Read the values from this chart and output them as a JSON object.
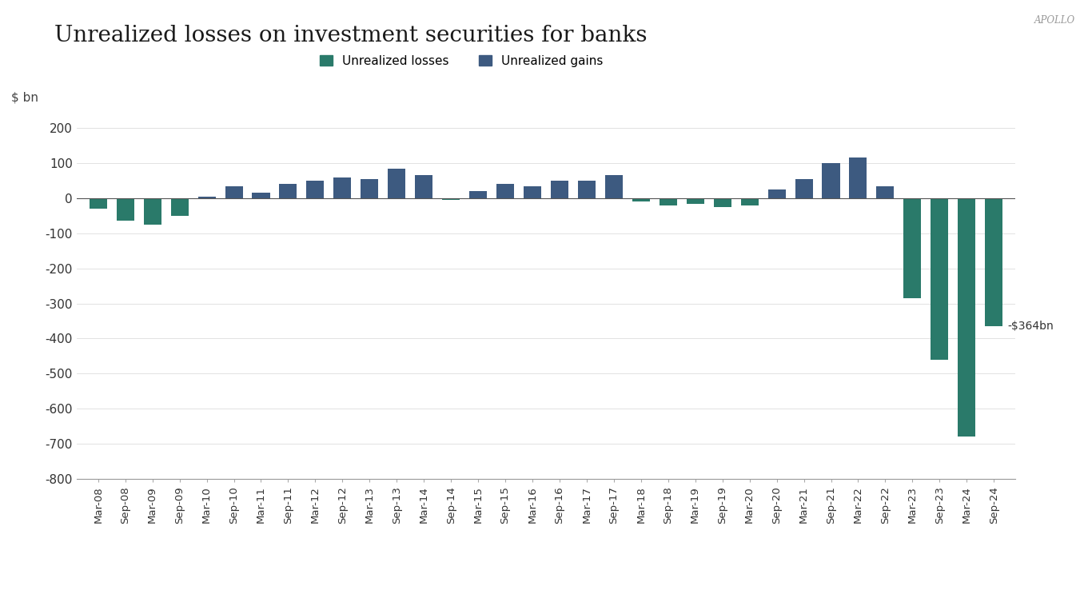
{
  "title": "Unrealized losses on investment securities for banks",
  "watermark": "APOLLO",
  "ylabel": "$ bn",
  "ylim": [
    -800,
    250
  ],
  "yticks": [
    -800,
    -700,
    -600,
    -500,
    -400,
    -300,
    -200,
    -100,
    0,
    100,
    200
  ],
  "annotation": "-$364bn",
  "loss_color": "#2a7a6a",
  "gain_color": "#3d5a80",
  "background_color": "#ffffff",
  "legend_loss": "Unrealized losses",
  "legend_gain": "Unrealized gains",
  "categories": [
    "Mar-08",
    "Sep-08",
    "Mar-09",
    "Sep-09",
    "Mar-10",
    "Sep-10",
    "Mar-11",
    "Sep-11",
    "Mar-12",
    "Sep-12",
    "Mar-13",
    "Sep-13",
    "Mar-14",
    "Sep-14",
    "Mar-15",
    "Sep-15",
    "Mar-16",
    "Sep-16",
    "Mar-17",
    "Sep-17",
    "Mar-18",
    "Sep-18",
    "Mar-19",
    "Sep-19",
    "Mar-20",
    "Sep-20",
    "Mar-21",
    "Sep-21",
    "Mar-22",
    "Sep-22",
    "Mar-23",
    "Sep-23",
    "Mar-24",
    "Sep-24"
  ],
  "values": [
    -30,
    -65,
    -75,
    -50,
    5,
    35,
    15,
    40,
    50,
    60,
    55,
    85,
    65,
    -5,
    20,
    40,
    35,
    50,
    50,
    65,
    -10,
    -20,
    -15,
    -25,
    -20,
    25,
    55,
    100,
    115,
    35,
    -285,
    -460,
    -680,
    -364
  ],
  "bar_types": [
    "loss",
    "loss",
    "loss",
    "loss",
    "gain",
    "gain",
    "gain",
    "gain",
    "gain",
    "gain",
    "gain",
    "gain",
    "gain",
    "loss",
    "gain",
    "gain",
    "gain",
    "gain",
    "gain",
    "gain",
    "loss",
    "loss",
    "loss",
    "loss",
    "loss",
    "gain",
    "gain",
    "gain",
    "gain",
    "gain",
    "loss",
    "loss",
    "loss",
    "loss"
  ]
}
